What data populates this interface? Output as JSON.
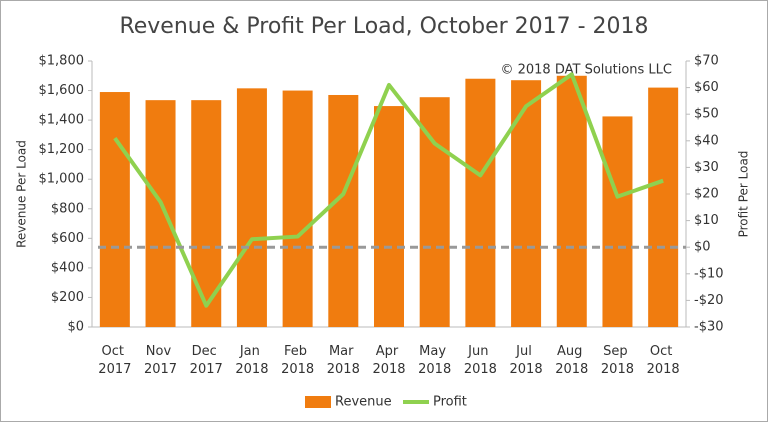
{
  "chart_data": {
    "type": "bar-line",
    "title": "Revenue & Profit Per Load, October 2017 - 2018",
    "annotation": "© 2018 DAT Solutions LLC",
    "y_label": "Revenue Per Load",
    "y2_label": "Profit Per Load",
    "categories": [
      "Oct 2017",
      "Nov 2017",
      "Dec 2017",
      "Jan 2018",
      "Feb 2018",
      "Mar 2018",
      "Apr 2018",
      "May 2018",
      "Jun 2018",
      "Jul 2018",
      "Aug 2018",
      "Sep 2018",
      "Oct 2018"
    ],
    "series": [
      {
        "name": "Revenue",
        "color": "#f07c0f",
        "type": "bar",
        "values": [
          1590,
          1535,
          1535,
          1615,
          1600,
          1570,
          1495,
          1555,
          1680,
          1670,
          1700,
          1425,
          1620
        ]
      },
      {
        "name": "Profit",
        "color": "#8fd14f",
        "type": "line",
        "axis": "y2",
        "values": [
          41,
          17,
          -22,
          3,
          4,
          20,
          61,
          39,
          27,
          53,
          65,
          19,
          25
        ]
      }
    ],
    "ylim": [
      0,
      1800
    ],
    "yticks": [
      {
        "value": 0,
        "label": "$0"
      },
      {
        "value": 200,
        "label": "$200"
      },
      {
        "value": 400,
        "label": "$400"
      },
      {
        "value": 600,
        "label": "$600"
      },
      {
        "value": 800,
        "label": "$800"
      },
      {
        "value": 1000,
        "label": "$1,000"
      },
      {
        "value": 1200,
        "label": "$1,200"
      },
      {
        "value": 1400,
        "label": "$1,400"
      },
      {
        "value": 1600,
        "label": "$1,600"
      },
      {
        "value": 1800,
        "label": "$1,800"
      }
    ],
    "y2lim": [
      -30,
      70
    ],
    "y2ticks": [
      {
        "value": -30,
        "label": "-$30"
      },
      {
        "value": -20,
        "label": "-$20"
      },
      {
        "value": -10,
        "label": "-$10"
      },
      {
        "value": 0,
        "label": "$0"
      },
      {
        "value": 10,
        "label": "$10"
      },
      {
        "value": 20,
        "label": "$20"
      },
      {
        "value": 30,
        "label": "$30"
      },
      {
        "value": 40,
        "label": "$40"
      },
      {
        "value": 50,
        "label": "$50"
      },
      {
        "value": 60,
        "label": "$60"
      },
      {
        "value": 70,
        "label": "$70"
      }
    ],
    "legend": "bottom"
  }
}
